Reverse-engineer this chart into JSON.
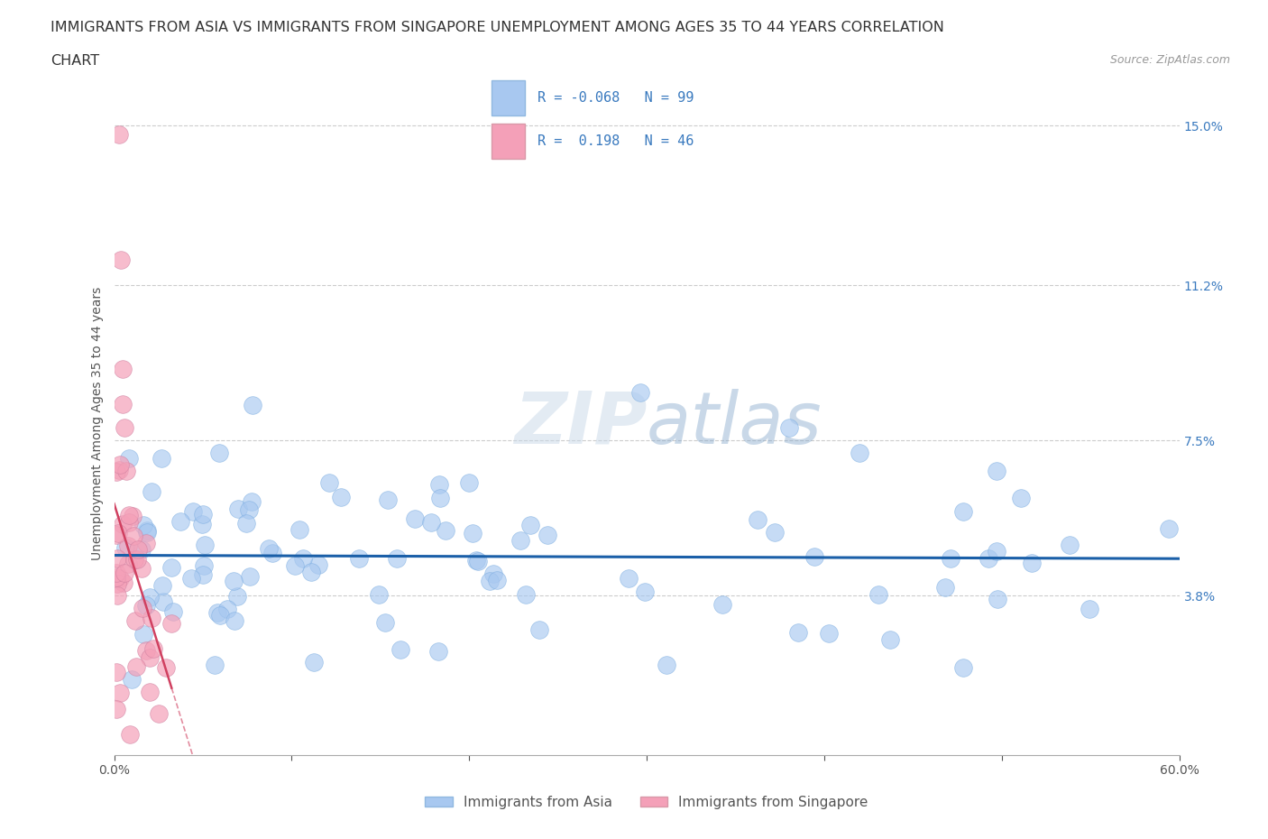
{
  "title_line1": "IMMIGRANTS FROM ASIA VS IMMIGRANTS FROM SINGAPORE UNEMPLOYMENT AMONG AGES 35 TO 44 YEARS CORRELATION",
  "title_line2": "CHART",
  "source": "Source: ZipAtlas.com",
  "ylabel": "Unemployment Among Ages 35 to 44 years",
  "xlim": [
    0.0,
    0.6
  ],
  "ylim": [
    0.0,
    0.158
  ],
  "ytick_positions": [
    0.038,
    0.075,
    0.112,
    0.15
  ],
  "ytick_labels": [
    "3.8%",
    "7.5%",
    "11.2%",
    "15.0%"
  ],
  "R_asia": -0.068,
  "N_asia": 99,
  "R_singapore": 0.198,
  "N_singapore": 46,
  "color_asia": "#a8c8f0",
  "color_singapore": "#f4a0b8",
  "color_asia_line": "#1a5fa8",
  "color_singapore_line": "#d04060",
  "legend_asia": "Immigrants from Asia",
  "legend_singapore": "Immigrants from Singapore"
}
